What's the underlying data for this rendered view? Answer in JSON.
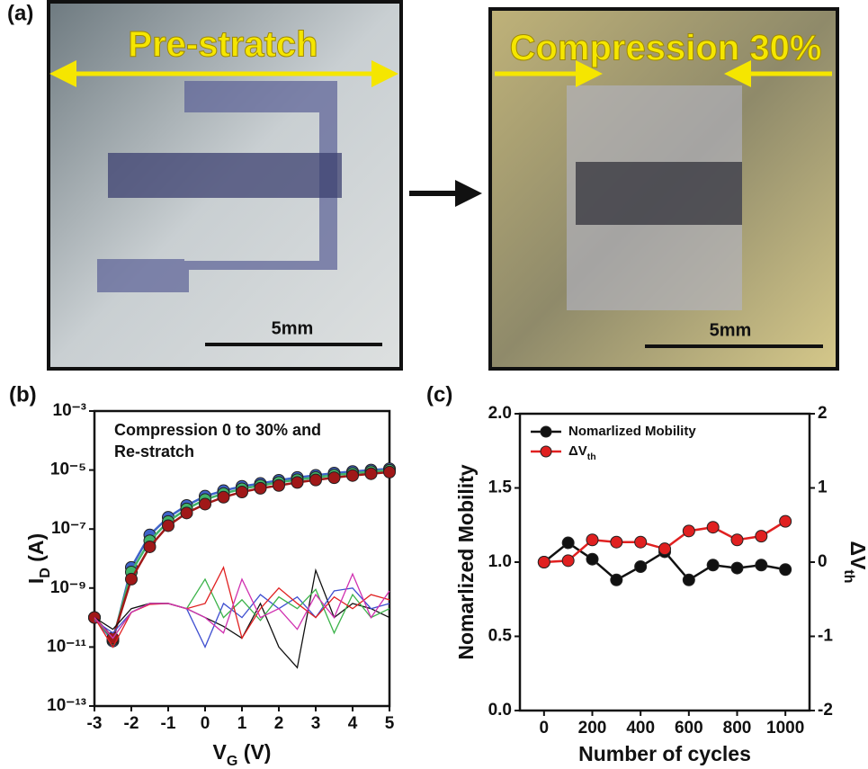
{
  "figure_a": {
    "label": "(a)",
    "images": [
      {
        "title": "Pre-stratch",
        "scale_bar": "5mm"
      },
      {
        "title": "Compression 30%",
        "scale_bar": "5mm"
      }
    ]
  },
  "chart_data": [
    {
      "type": "line",
      "label": "(b)",
      "annotation": [
        "Compression 0 to 30% and",
        "Re-stratch"
      ],
      "x_label": "VG (V)",
      "y_label": "ID (A)",
      "log_y": true,
      "xlim": [
        -3,
        5
      ],
      "xticks": [
        -3,
        -2,
        -1,
        0,
        1,
        2,
        3,
        4,
        5
      ],
      "ylim": [
        1e-13,
        0.001
      ],
      "yticks": [
        {
          "value": 1e-13,
          "label": "10⁻¹³"
        },
        {
          "value": 1e-11,
          "label": "10⁻¹¹"
        },
        {
          "value": 1e-09,
          "label": "10⁻⁹"
        },
        {
          "value": 1e-07,
          "label": "10⁻⁷"
        },
        {
          "value": 1e-05,
          "label": "10⁻⁵"
        },
        {
          "value": 0.001,
          "label": "10⁻³"
        }
      ],
      "x": [
        -3,
        -2.5,
        -2,
        -1.5,
        -1,
        -0.5,
        0,
        0.5,
        1,
        1.5,
        2,
        2.5,
        3,
        3.5,
        4,
        4.5,
        5
      ],
      "series": [
        {
          "color": "#3f63c9",
          "markers": true,
          "values": [
            1e-10,
            1.6e-11,
            5e-09,
            6.3e-08,
            2.5e-07,
            6.3e-07,
            1.3e-06,
            2e-06,
            2.8e-06,
            3.5e-06,
            4.5e-06,
            5.6e-06,
            6.6e-06,
            7.9e-06,
            8.9e-06,
            1e-05,
            1.1e-05
          ]
        },
        {
          "color": "#41b36a",
          "markers": true,
          "values": [
            1e-10,
            1.8e-11,
            3.5e-09,
            4e-08,
            1.8e-07,
            4.8e-07,
            1e-06,
            1.6e-06,
            2.3e-06,
            3e-06,
            3.8e-06,
            4.7e-06,
            5.6e-06,
            6.7e-06,
            7.7e-06,
            8.8e-06,
            9.8e-06
          ]
        },
        {
          "color": "#a01818",
          "markers": true,
          "values": [
            1e-10,
            2e-11,
            2e-09,
            2.5e-08,
            1.3e-07,
            3.5e-07,
            7e-07,
            1.2e-06,
            1.8e-06,
            2.4e-06,
            3e-06,
            3.8e-06,
            4.6e-06,
            5.5e-06,
            6.5e-06,
            7.5e-06,
            8.5e-06
          ]
        },
        {
          "color": "#111111",
          "markers": false,
          "values": [
            1e-10,
            4e-11,
            2e-10,
            3e-10,
            3e-10,
            2e-10,
            1e-10,
            5e-11,
            2e-11,
            3e-10,
            1e-11,
            2e-12,
            4e-09,
            1e-10,
            3e-10,
            2e-10,
            1e-10
          ]
        },
        {
          "color": "#3f4fd0",
          "markers": false,
          "values": [
            8e-11,
            3e-11,
            1.5e-10,
            3e-10,
            3e-10,
            2e-10,
            1e-11,
            3e-10,
            1e-10,
            6e-10,
            2e-10,
            5e-10,
            1e-10,
            8e-10,
            1e-09,
            2e-10,
            3e-10
          ]
        },
        {
          "color": "#3cb34a",
          "markers": false,
          "values": [
            9e-11,
            2e-11,
            1.5e-10,
            3e-10,
            3e-10,
            2e-10,
            2e-09,
            1e-10,
            4e-10,
            8e-11,
            5e-10,
            2e-10,
            9e-10,
            3e-11,
            6e-10,
            1e-10,
            2e-10
          ]
        },
        {
          "color": "#e02020",
          "markers": false,
          "values": [
            1e-10,
            1e-11,
            1.5e-10,
            2.8e-10,
            3e-10,
            2e-10,
            3e-10,
            5e-09,
            2e-11,
            2e-10,
            1e-09,
            3e-10,
            1e-10,
            5e-10,
            2e-10,
            6e-10,
            4e-10
          ]
        },
        {
          "color": "#d030b0",
          "markers": false,
          "values": [
            1e-10,
            2e-11,
            1.5e-10,
            3e-10,
            3e-10,
            2e-10,
            1e-10,
            3e-11,
            2e-09,
            1e-10,
            2e-10,
            4e-11,
            6e-10,
            1e-10,
            3e-09,
            1e-10,
            8e-10
          ]
        }
      ]
    },
    {
      "type": "line",
      "label": "(c)",
      "x_label": "Number of cycles",
      "y_label": "Nomarlized Mobility",
      "y2_label": "ΔVth",
      "legend": "upper left",
      "xlim": [
        -100,
        1100
      ],
      "xticks": [
        0,
        200,
        400,
        600,
        800,
        1000
      ],
      "ylim": [
        0,
        2
      ],
      "yticks": [
        {
          "value": 0,
          "label": "0.0"
        },
        {
          "value": 0.5,
          "label": "0.5"
        },
        {
          "value": 1,
          "label": "1.0"
        },
        {
          "value": 1.5,
          "label": "1.5"
        },
        {
          "value": 2,
          "label": "2.0"
        }
      ],
      "y2lim": [
        -2,
        2
      ],
      "y2ticks": [
        -2,
        -1,
        0,
        1,
        2
      ],
      "x": [
        0,
        100,
        200,
        300,
        400,
        500,
        600,
        700,
        800,
        900,
        1000
      ],
      "series": [
        {
          "name": "Nomarlized Mobility",
          "color": "#111111",
          "markers": true,
          "values": [
            1.0,
            1.13,
            1.02,
            0.88,
            0.97,
            1.07,
            0.88,
            0.98,
            0.96,
            0.98,
            0.95
          ]
        },
        {
          "name": "ΔVth",
          "color": "#e02020",
          "markers": true,
          "axis": "y2",
          "values": [
            0,
            0.02,
            0.3,
            0.27,
            0.27,
            0.18,
            0.42,
            0.47,
            0.3,
            0.35,
            0.55
          ]
        }
      ]
    }
  ]
}
